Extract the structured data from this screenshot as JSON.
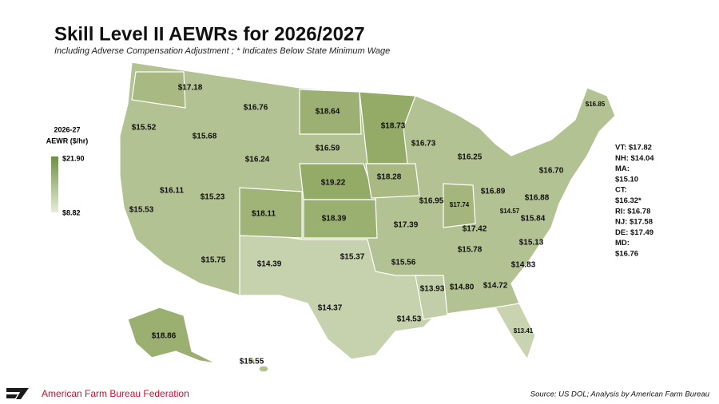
{
  "header": {
    "title": "Skill Level II AEWRs for 2026/2027",
    "subtitle": "Including Adverse Compensation Adjustment ; * Indicates Below State Minimum Wage"
  },
  "legend": {
    "title_line1": "2026-27",
    "title_line2": "AEWR ($/hr)",
    "max_label": "$21.90",
    "min_label": "$8.82"
  },
  "map": {
    "state_labels": [
      "$17.18",
      "$15.52",
      "$15.68",
      "$16.76",
      "$16.24",
      "$18.64",
      "$16.59",
      "$18.73",
      "$16.73",
      "$16.25",
      "$16.11",
      "$15.23",
      "$15.53",
      "$18.11",
      "$19.22",
      "$18.28",
      "$16.95",
      "$17.74",
      "$16.89",
      "$18.39",
      "$17.39",
      "$17.42",
      "$14.57",
      "$15.84",
      "$15.75",
      "$14.39",
      "$15.37",
      "$15.56",
      "$15.78",
      "$15.13",
      "$14.83",
      "$13.93",
      "$14.80",
      "$14.72",
      "$14.37",
      "$14.53",
      "$13.41",
      "$18.86",
      "$15.55",
      "$16.70",
      "$16.88",
      "$16.85"
    ],
    "northeast_notes": [
      "VT: $17.82",
      "NH: $14.04",
      "MA:",
      "$15.10",
      "CT:",
      "$16.32*",
      "RI: $16.78",
      "NJ: $17.58",
      "DE: $17.49",
      "MD:",
      "$16.76"
    ]
  },
  "footer": {
    "organization": "American Farm Bureau Federation",
    "source": "Source: US DOL; Analysis by American Farm Bureau"
  }
}
